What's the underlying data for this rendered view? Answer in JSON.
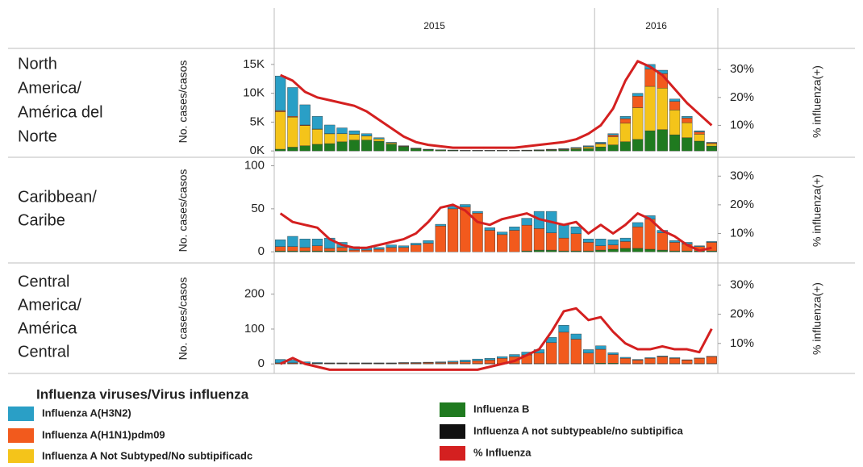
{
  "categories": [
    "2015",
    "2015",
    "2015",
    "2015",
    "2015",
    "2015",
    "2015",
    "2015",
    "2015",
    "2015",
    "2015",
    "2015",
    "2015",
    "2015",
    "2015",
    "2015",
    "2015",
    "2015",
    "2015",
    "2015",
    "2015",
    "2015",
    "2015",
    "2015",
    "2015",
    "2015",
    "2016",
    "2016",
    "2016",
    "2016",
    "2016",
    "2016",
    "2016",
    "2016",
    "2016",
    "2016"
  ],
  "legend": {
    "title": "Influenza viruses/Virus influenza",
    "items": [
      {
        "name": "Influenza A(H3N2)",
        "color": "#2a9fc6"
      },
      {
        "name": "Influenza A(H1N1)pdm09",
        "color": "#f25a1d"
      },
      {
        "name": "Influenza A Not Subtyped/No subtipificadc",
        "color": "#f4c41a"
      },
      {
        "name": "Influenza B",
        "color": "#1f7a1f"
      },
      {
        "name": "Influenza A not subtypeable/no subtipifica",
        "color": "#111111"
      },
      {
        "name": "% Influenza",
        "color": "#d42020"
      }
    ]
  },
  "chart_data": [
    {
      "type": "bar",
      "region": [
        "North",
        "America/",
        "América del",
        "Norte"
      ],
      "ylabel": "No. cases/casos",
      "y2label": "% influenza(+)",
      "ylim": [
        -400,
        17500
      ],
      "yticks": [
        {
          "value": 0,
          "label": "0K"
        },
        {
          "value": 5000,
          "label": "5K"
        },
        {
          "value": 10000,
          "label": "10K"
        },
        {
          "value": 15000,
          "label": "15K"
        }
      ],
      "y2lim": [
        0,
        37
      ],
      "y2ticks": [
        {
          "value": 10,
          "label": "10%"
        },
        {
          "value": 20,
          "label": "20%"
        },
        {
          "value": 30,
          "label": "30%"
        }
      ],
      "series": [
        {
          "name": "Influenza B",
          "values": [
            300,
            650,
            900,
            1150,
            1270,
            1580,
            1890,
            1890,
            1690,
            1190,
            740,
            400,
            230,
            150,
            100,
            50,
            50,
            50,
            50,
            50,
            70,
            100,
            140,
            180,
            290,
            420,
            700,
            1050,
            1600,
            2000,
            3500,
            3700,
            2800,
            2300,
            1700,
            850
          ]
        },
        {
          "name": "Influenza A Not Subtyped/No subtipificadc",
          "values": [
            6500,
            5200,
            3500,
            2600,
            1700,
            1400,
            1000,
            700,
            400,
            200,
            100,
            60,
            40,
            30,
            30,
            30,
            30,
            30,
            30,
            30,
            40,
            50,
            80,
            100,
            150,
            250,
            500,
            1400,
            3200,
            5500,
            7700,
            7200,
            4300,
            2600,
            1200,
            400
          ]
        },
        {
          "name": "Influenza A(H1N1)pdm09",
          "values": [
            200,
            150,
            100,
            50,
            30,
            20,
            10,
            10,
            10,
            10,
            10,
            10,
            10,
            10,
            10,
            10,
            10,
            10,
            10,
            10,
            20,
            20,
            30,
            40,
            60,
            80,
            100,
            300,
            800,
            2000,
            3000,
            2500,
            1500,
            800,
            400,
            150
          ]
        },
        {
          "name": "Influenza A(H3N2)",
          "values": [
            6000,
            5000,
            3500,
            2200,
            1500,
            1000,
            600,
            400,
            200,
            100,
            50,
            30,
            20,
            10,
            10,
            10,
            10,
            10,
            10,
            10,
            20,
            30,
            50,
            80,
            100,
            150,
            200,
            250,
            400,
            500,
            800,
            600,
            400,
            300,
            200,
            100
          ]
        },
        {
          "name": "% Influenza",
          "axis": "y2",
          "values": [
            28,
            26,
            22,
            20,
            19,
            18,
            17,
            15,
            12,
            9,
            6,
            4,
            3,
            2.5,
            2,
            2,
            2,
            2,
            2,
            2,
            2.5,
            3,
            3.5,
            4,
            5,
            7,
            10,
            16,
            26,
            33,
            31,
            28,
            23,
            18,
            14,
            10
          ]
        }
      ]
    },
    {
      "type": "bar",
      "region": [
        "Caribbean/",
        "Caribe"
      ],
      "ylabel": "No. cases/casos",
      "y2label": "% influenza(+)",
      "ylim": [
        -12,
        108
      ],
      "yticks": [
        0,
        50,
        100
      ],
      "y2lim": [
        0,
        36
      ],
      "y2ticks": [
        {
          "value": 10,
          "label": "10%"
        },
        {
          "value": 20,
          "label": "20%"
        },
        {
          "value": 30,
          "label": "30%"
        }
      ],
      "series": [
        {
          "name": "Influenza B",
          "values": [
            1,
            1,
            1,
            1,
            1,
            1,
            0,
            0,
            0,
            0,
            0,
            0,
            0,
            0,
            0,
            0,
            0,
            0,
            0,
            0,
            1,
            2,
            2,
            1,
            1,
            1,
            2,
            3,
            4,
            4,
            3,
            2,
            1,
            1,
            1,
            1
          ]
        },
        {
          "name": "Influenza A(H1N1)pdm09",
          "values": [
            5,
            5,
            4,
            6,
            3,
            4,
            2,
            2,
            3,
            5,
            5,
            8,
            10,
            30,
            50,
            52,
            45,
            25,
            20,
            25,
            30,
            25,
            20,
            15,
            20,
            10,
            5,
            5,
            8,
            25,
            35,
            20,
            10,
            8,
            5,
            10
          ]
        },
        {
          "name": "Influenza A(H3N2)",
          "values": [
            8,
            12,
            10,
            8,
            12,
            6,
            4,
            3,
            2,
            3,
            2,
            2,
            3,
            2,
            3,
            3,
            2,
            3,
            3,
            4,
            8,
            20,
            25,
            15,
            8,
            4,
            8,
            6,
            4,
            5,
            4,
            3,
            2,
            2,
            1,
            1
          ]
        },
        {
          "name": "% Influenza",
          "axis": "y2",
          "values": [
            17,
            14,
            13,
            12,
            8,
            6,
            5,
            5,
            6,
            7,
            8,
            10,
            14,
            19,
            20,
            18,
            14,
            13,
            15,
            16,
            17,
            15,
            14,
            13,
            14,
            10,
            13,
            10,
            13,
            17,
            15,
            11,
            9,
            6,
            4,
            5
          ]
        }
      ]
    },
    {
      "type": "bar",
      "region": [
        "Central",
        "America/",
        "América",
        "Central"
      ],
      "ylabel": "No. cases/casos",
      "y2label": "% influenza(+)",
      "ylim": [
        -25,
        285
      ],
      "yticks": [
        0,
        100,
        200
      ],
      "y2lim": [
        0,
        37
      ],
      "y2ticks": [
        {
          "value": 10,
          "label": "10%"
        },
        {
          "value": 20,
          "label": "20%"
        },
        {
          "value": 30,
          "label": "30%"
        }
      ],
      "series": [
        {
          "name": "Influenza B",
          "values": [
            1,
            1,
            1,
            1,
            1,
            1,
            1,
            1,
            1,
            1,
            1,
            1,
            1,
            1,
            1,
            1,
            1,
            1,
            1,
            1,
            1,
            1,
            1,
            1,
            1,
            1,
            2,
            2,
            1,
            1,
            1,
            1,
            1,
            1,
            1,
            1
          ]
        },
        {
          "name": "Influenza A(H1N1)pdm09",
          "values": [
            2,
            2,
            1,
            1,
            1,
            1,
            1,
            1,
            1,
            1,
            2,
            2,
            3,
            3,
            4,
            5,
            8,
            10,
            15,
            20,
            25,
            30,
            60,
            90,
            70,
            30,
            40,
            25,
            15,
            10,
            15,
            20,
            15,
            10,
            15,
            20
          ]
        },
        {
          "name": "Influenza A(H3N2)",
          "values": [
            10,
            8,
            4,
            2,
            1,
            1,
            1,
            1,
            1,
            1,
            1,
            1,
            1,
            2,
            3,
            5,
            5,
            5,
            5,
            6,
            8,
            10,
            15,
            20,
            15,
            10,
            10,
            5,
            3,
            2,
            2,
            2,
            2,
            1,
            1,
            1
          ]
        },
        {
          "name": "% Influenza",
          "axis": "y2",
          "values": [
            3,
            5,
            3,
            2,
            1,
            1,
            1,
            1,
            1,
            1,
            1,
            1,
            1,
            1,
            1,
            1,
            1,
            2,
            3,
            4,
            6,
            8,
            14,
            21,
            22,
            18,
            19,
            14,
            10,
            8,
            8,
            9,
            8,
            8,
            7,
            15
          ]
        }
      ]
    }
  ]
}
